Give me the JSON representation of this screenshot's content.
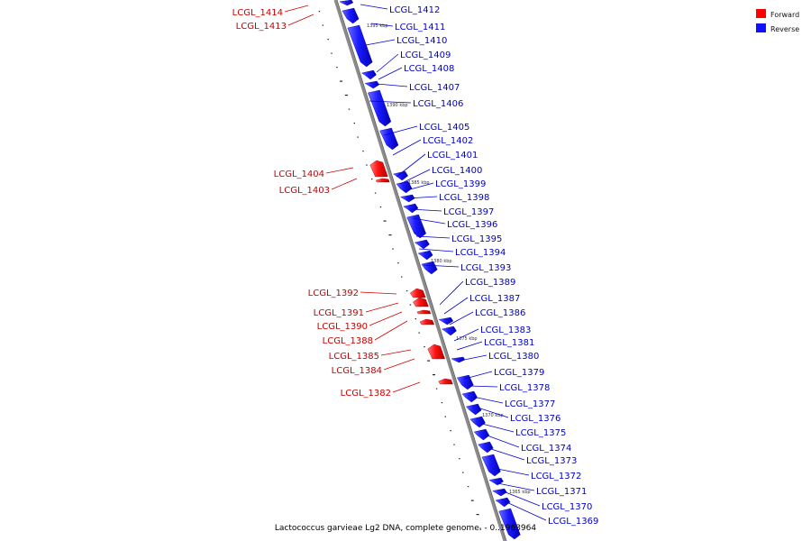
{
  "legend": {
    "forward_label": "Forward",
    "reverse_label": "Reverse",
    "forward_color": "#ff0000",
    "reverse_color": "#1010ff"
  },
  "caption": "Lactococcus garvieae Lg2 DNA, complete genome. - 0..1963964",
  "genes_reverse": [
    "LCGL_1412",
    "LCGL_1411",
    "LCGL_1410",
    "LCGL_1409",
    "LCGL_1408",
    "LCGL_1407",
    "LCGL_1406",
    "LCGL_1405",
    "LCGL_1402",
    "LCGL_1401",
    "LCGL_1400",
    "LCGL_1399",
    "LCGL_1398",
    "LCGL_1397",
    "LCGL_1396",
    "LCGL_1395",
    "LCGL_1394",
    "LCGL_1393",
    "LCGL_1389",
    "LCGL_1387",
    "LCGL_1386",
    "LCGL_1383",
    "LCGL_1381",
    "LCGL_1380",
    "LCGL_1379",
    "LCGL_1378",
    "LCGL_1377",
    "LCGL_1376",
    "LCGL_1375",
    "LCGL_1374",
    "LCGL_1373",
    "LCGL_1372",
    "LCGL_1371",
    "LCGL_1370",
    "LCGL_1369"
  ],
  "genes_forward": [
    "LCGL_1414",
    "LCGL_1413",
    "LCGL_1404",
    "LCGL_1403",
    "LCGL_1392",
    "LCGL_1391",
    "LCGL_1390",
    "LCGL_1388",
    "LCGL_1385",
    "LCGL_1384",
    "LCGL_1382"
  ],
  "ticks": [
    "1395 kbp",
    "1390 kbp",
    "1385 kbp",
    "1380 kbp",
    "1375 kbp",
    "1370 kbp",
    "1365 kbp"
  ]
}
